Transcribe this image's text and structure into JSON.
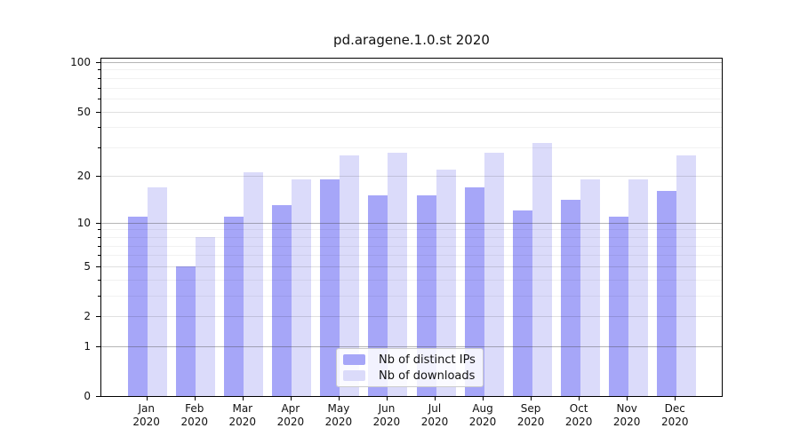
{
  "chart_data": {
    "type": "bar",
    "title": "pd.aragene.1.0.st 2020",
    "categories": [
      "Jan",
      "Feb",
      "Mar",
      "Apr",
      "May",
      "Jun",
      "Jul",
      "Aug",
      "Sep",
      "Oct",
      "Nov",
      "Dec"
    ],
    "year": "2020",
    "series": [
      {
        "name": "Nb of distinct IPs",
        "color": "#a6a6f8",
        "values": [
          11,
          5,
          11,
          13,
          19,
          15,
          15,
          17,
          12,
          14,
          11,
          16
        ]
      },
      {
        "name": "Nb of downloads",
        "color": "#dbdbfa",
        "values": [
          17,
          8,
          21,
          19,
          27,
          28,
          22,
          28,
          32,
          19,
          19,
          27
        ]
      }
    ],
    "yscale": "log10(1+y)",
    "yticks": [
      0,
      1,
      2,
      5,
      10,
      20,
      50,
      100
    ],
    "yticks_minor": [
      3,
      4,
      6,
      7,
      8,
      9,
      30,
      40,
      60,
      70,
      80,
      90
    ],
    "ylim": [
      0,
      106
    ],
    "grid": true,
    "legend_position": "lower center"
  }
}
